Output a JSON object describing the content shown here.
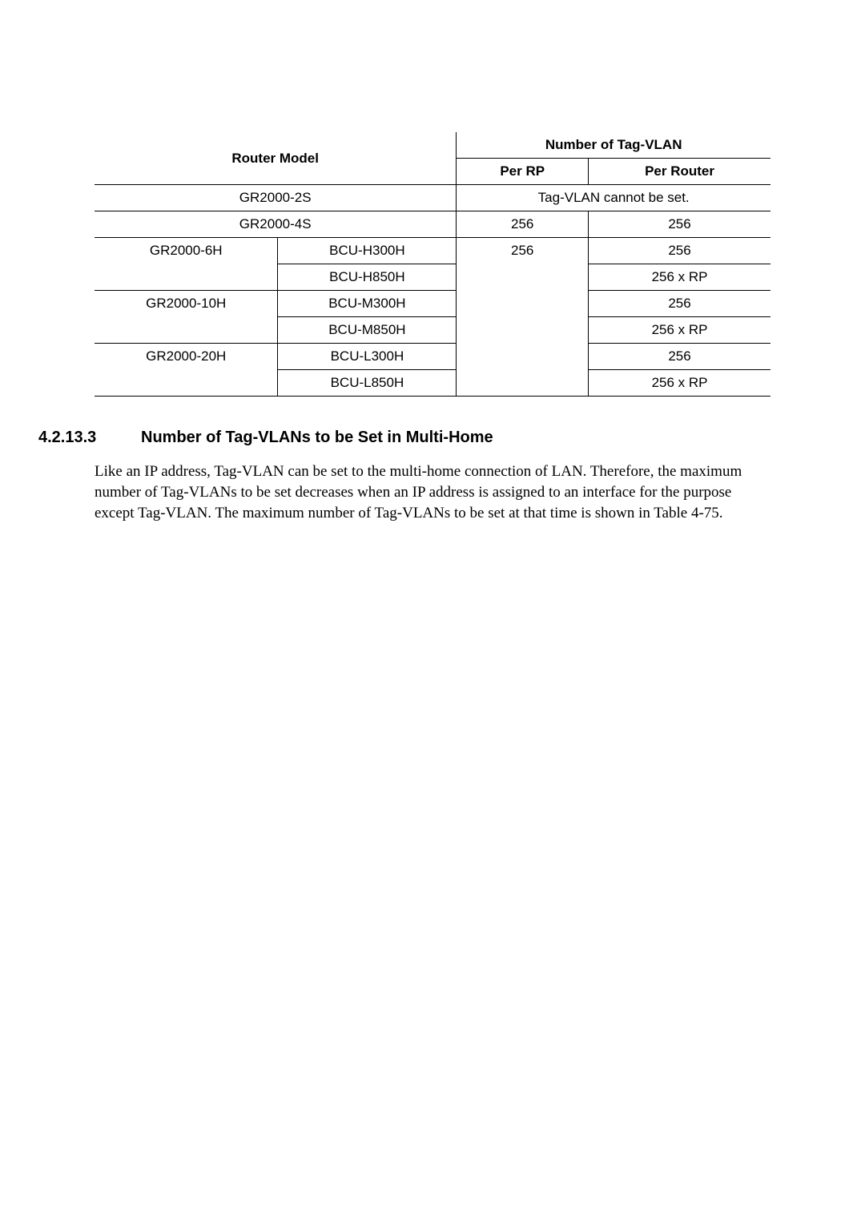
{
  "table": {
    "header": {
      "router_model": "Router Model",
      "num_tag_vlan": "Number of Tag-VLAN",
      "per_rp": "Per RP",
      "per_router": "Per Router"
    },
    "rows": {
      "r0": {
        "model": "GR2000-2S",
        "value": "Tag-VLAN cannot be set."
      },
      "r1": {
        "model": "GR2000-4S",
        "per_rp": "256",
        "per_router": "256"
      },
      "r2": {
        "model": "GR2000-6H",
        "bcu": "BCU-H300H",
        "per_rp": "256",
        "per_router": "256"
      },
      "r3": {
        "bcu": "BCU-H850H",
        "per_router": "256 x RP"
      },
      "r4": {
        "model": "GR2000-10H",
        "bcu": "BCU-M300H",
        "per_router": "256"
      },
      "r5": {
        "bcu": "BCU-M850H",
        "per_router": "256 x RP"
      },
      "r6": {
        "model": "GR2000-20H",
        "bcu": "BCU-L300H",
        "per_router": "256"
      },
      "r7": {
        "bcu": "BCU-L850H",
        "per_router": "256 x RP"
      }
    }
  },
  "section": {
    "number": "4.2.13.3",
    "title": "Number of Tag-VLANs to be Set in Multi-Home"
  },
  "paragraph": "Like an IP address, Tag-VLAN can be set to the multi-home connection of LAN. Therefore, the maximum number of Tag-VLANs to be set decreases when an IP address is assigned to an interface for the purpose except Tag-VLAN.  The maximum number of Tag-VLANs to be set at that time is shown in Table 4-75."
}
